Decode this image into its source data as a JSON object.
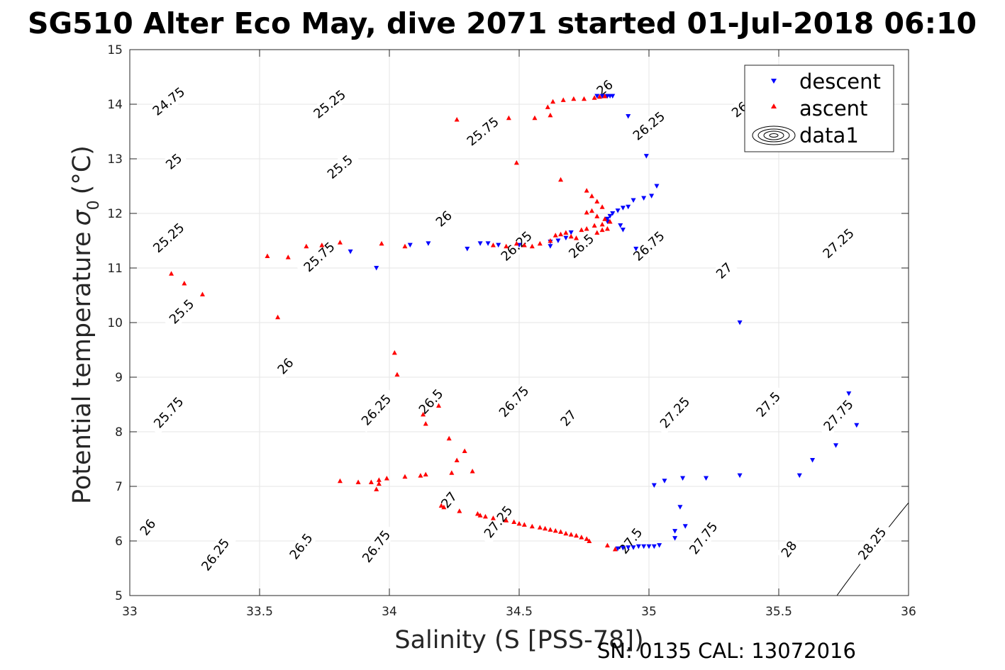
{
  "chart_data": {
    "type": "scatter",
    "title": "SG510 Alter Eco May, dive 2071 started 01-Jul-2018 06:10",
    "xlabel": "Salinity (S [PSS-78])",
    "ylabel": "Potential temperature",
    "ylabel_symbol": "σ",
    "ylabel_subscript": "0",
    "ylabel_unit": "(°C)",
    "xlim": [
      33,
      36
    ],
    "ylim": [
      5,
      15
    ],
    "xticks": [
      "33",
      "33.5",
      "34",
      "34.5",
      "35",
      "35.5",
      "36"
    ],
    "yticks": [
      "5",
      "6",
      "7",
      "8",
      "9",
      "10",
      "11",
      "12",
      "13",
      "14",
      "15"
    ],
    "grid": true,
    "legend_position": "top-right",
    "contours": {
      "levels": [
        24.75,
        25,
        25.25,
        25.5,
        25.75,
        26,
        26.25,
        26.5,
        26.75,
        27,
        27.25,
        27.5,
        27.75,
        28,
        28.25
      ],
      "labels": [
        {
          "text": "24.75",
          "s": 33.15,
          "t": 14.05
        },
        {
          "text": "25",
          "s": 33.17,
          "t": 12.95
        },
        {
          "text": "25.25",
          "s": 33.15,
          "t": 11.55
        },
        {
          "text": "25.5",
          "s": 33.2,
          "t": 10.2
        },
        {
          "text": "25.75",
          "s": 33.15,
          "t": 8.35
        },
        {
          "text": "26",
          "s": 33.07,
          "t": 6.25
        },
        {
          "text": "25.25",
          "s": 33.77,
          "t": 14.0
        },
        {
          "text": "25.5",
          "s": 33.81,
          "t": 12.85
        },
        {
          "text": "25.75",
          "s": 33.73,
          "t": 11.2
        },
        {
          "text": "26",
          "s": 33.6,
          "t": 9.2
        },
        {
          "text": "26.25",
          "s": 33.33,
          "t": 5.75
        },
        {
          "text": "25.75",
          "s": 34.36,
          "t": 13.5
        },
        {
          "text": "26",
          "s": 34.21,
          "t": 11.9
        },
        {
          "text": "26.25",
          "s": 33.95,
          "t": 8.4
        },
        {
          "text": "26.5",
          "s": 33.66,
          "t": 5.9
        },
        {
          "text": "26.25",
          "s": 34.49,
          "t": 11.4
        },
        {
          "text": "26.5",
          "s": 34.16,
          "t": 8.55
        },
        {
          "text": "26.75",
          "s": 33.95,
          "t": 5.9
        },
        {
          "text": "26",
          "s": 34.83,
          "t": 14.3
        },
        {
          "text": "26.5",
          "s": 34.74,
          "t": 11.4
        },
        {
          "text": "26.75",
          "s": 34.48,
          "t": 8.55
        },
        {
          "text": "27",
          "s": 34.23,
          "t": 6.75
        },
        {
          "text": "26.25",
          "s": 35.0,
          "t": 13.6
        },
        {
          "text": "26.75",
          "s": 35.0,
          "t": 11.4
        },
        {
          "text": "27",
          "s": 34.69,
          "t": 8.25
        },
        {
          "text": "27.25",
          "s": 34.42,
          "t": 6.35
        },
        {
          "text": "26",
          "s": 35.35,
          "t": 13.9
        },
        {
          "text": "27",
          "s": 35.29,
          "t": 10.95
        },
        {
          "text": "27.25",
          "s": 35.1,
          "t": 8.35
        },
        {
          "text": "27.5",
          "s": 34.93,
          "t": 6.0
        },
        {
          "text": "27.25",
          "s": 35.73,
          "t": 11.45
        },
        {
          "text": "27.5",
          "s": 35.46,
          "t": 8.5
        },
        {
          "text": "27.75",
          "s": 35.21,
          "t": 6.05
        },
        {
          "text": "27.75",
          "s": 35.73,
          "t": 8.3
        },
        {
          "text": "28",
          "s": 35.54,
          "t": 5.85
        },
        {
          "text": "28.25",
          "s": 35.86,
          "t": 5.95
        }
      ]
    },
    "series": [
      {
        "name": "descent",
        "marker": "triangle-down",
        "color": "#0000FF",
        "points": [
          [
            34.8,
            14.15
          ],
          [
            34.82,
            14.15
          ],
          [
            34.84,
            14.15
          ],
          [
            34.85,
            14.15
          ],
          [
            34.86,
            14.15
          ],
          [
            34.92,
            13.78
          ],
          [
            34.99,
            13.05
          ],
          [
            35.03,
            12.5
          ],
          [
            35.01,
            12.32
          ],
          [
            34.98,
            12.28
          ],
          [
            34.94,
            12.24
          ],
          [
            34.92,
            12.12
          ],
          [
            34.9,
            12.1
          ],
          [
            34.88,
            12.05
          ],
          [
            34.86,
            12.0
          ],
          [
            34.85,
            11.95
          ],
          [
            34.84,
            11.9
          ],
          [
            34.84,
            11.85
          ],
          [
            34.89,
            11.78
          ],
          [
            34.9,
            11.7
          ],
          [
            34.95,
            11.35
          ],
          [
            34.7,
            11.65
          ],
          [
            34.68,
            11.55
          ],
          [
            34.65,
            11.5
          ],
          [
            34.62,
            11.48
          ],
          [
            34.62,
            11.4
          ],
          [
            34.5,
            11.42
          ],
          [
            34.42,
            11.42
          ],
          [
            34.38,
            11.45
          ],
          [
            34.35,
            11.45
          ],
          [
            34.3,
            11.35
          ],
          [
            34.15,
            11.45
          ],
          [
            34.08,
            11.42
          ],
          [
            33.95,
            11.0
          ],
          [
            33.85,
            11.3
          ],
          [
            35.35,
            10.0
          ],
          [
            35.8,
            8.12
          ],
          [
            35.77,
            8.7
          ],
          [
            35.72,
            7.75
          ],
          [
            35.63,
            7.48
          ],
          [
            35.58,
            7.2
          ],
          [
            35.35,
            7.2
          ],
          [
            35.22,
            7.15
          ],
          [
            35.13,
            7.15
          ],
          [
            35.06,
            7.1
          ],
          [
            35.02,
            7.02
          ],
          [
            35.12,
            6.62
          ],
          [
            35.14,
            6.27
          ],
          [
            35.1,
            6.18
          ],
          [
            35.1,
            6.05
          ],
          [
            35.04,
            5.92
          ],
          [
            35.02,
            5.9
          ],
          [
            35.0,
            5.9
          ],
          [
            34.98,
            5.9
          ],
          [
            34.96,
            5.9
          ],
          [
            34.94,
            5.88
          ],
          [
            34.92,
            5.88
          ],
          [
            34.9,
            5.87
          ],
          [
            34.88,
            5.86
          ]
        ]
      },
      {
        "name": "ascent",
        "marker": "triangle-up",
        "color": "#FF0000",
        "points": [
          [
            34.83,
            14.15
          ],
          [
            34.81,
            14.14
          ],
          [
            34.79,
            14.12
          ],
          [
            34.75,
            14.1
          ],
          [
            34.71,
            14.1
          ],
          [
            34.67,
            14.08
          ],
          [
            34.63,
            14.05
          ],
          [
            34.61,
            13.95
          ],
          [
            34.62,
            13.8
          ],
          [
            34.56,
            13.75
          ],
          [
            34.46,
            13.75
          ],
          [
            34.26,
            13.72
          ],
          [
            34.49,
            12.93
          ],
          [
            34.66,
            12.62
          ],
          [
            34.76,
            12.42
          ],
          [
            34.78,
            12.32
          ],
          [
            34.8,
            12.22
          ],
          [
            34.82,
            12.12
          ],
          [
            34.78,
            12.05
          ],
          [
            34.76,
            12.02
          ],
          [
            34.8,
            11.95
          ],
          [
            34.83,
            11.9
          ],
          [
            34.85,
            11.85
          ],
          [
            34.82,
            11.8
          ],
          [
            34.79,
            11.78
          ],
          [
            34.76,
            11.72
          ],
          [
            34.74,
            11.7
          ],
          [
            34.8,
            11.65
          ],
          [
            34.82,
            11.7
          ],
          [
            34.84,
            11.72
          ],
          [
            34.68,
            11.65
          ],
          [
            34.66,
            11.62
          ],
          [
            34.64,
            11.6
          ],
          [
            34.7,
            11.58
          ],
          [
            34.72,
            11.55
          ],
          [
            34.62,
            11.5
          ],
          [
            34.58,
            11.45
          ],
          [
            34.55,
            11.4
          ],
          [
            34.52,
            11.42
          ],
          [
            34.49,
            11.45
          ],
          [
            34.45,
            11.4
          ],
          [
            34.4,
            11.42
          ],
          [
            34.06,
            11.4
          ],
          [
            33.97,
            11.45
          ],
          [
            33.81,
            11.47
          ],
          [
            33.74,
            11.42
          ],
          [
            33.68,
            11.4
          ],
          [
            33.61,
            11.2
          ],
          [
            33.53,
            11.22
          ],
          [
            33.16,
            10.9
          ],
          [
            33.21,
            10.72
          ],
          [
            33.28,
            10.52
          ],
          [
            33.57,
            10.1
          ],
          [
            34.02,
            9.45
          ],
          [
            34.03,
            9.05
          ],
          [
            34.19,
            8.48
          ],
          [
            34.13,
            8.32
          ],
          [
            34.14,
            8.15
          ],
          [
            34.23,
            7.88
          ],
          [
            34.29,
            7.65
          ],
          [
            34.26,
            7.48
          ],
          [
            34.32,
            7.28
          ],
          [
            34.24,
            7.25
          ],
          [
            34.14,
            7.22
          ],
          [
            34.12,
            7.2
          ],
          [
            34.06,
            7.18
          ],
          [
            33.99,
            7.15
          ],
          [
            33.96,
            7.12
          ],
          [
            33.93,
            7.08
          ],
          [
            33.88,
            7.08
          ],
          [
            33.81,
            7.1
          ],
          [
            33.96,
            7.05
          ],
          [
            33.95,
            6.95
          ],
          [
            34.2,
            6.65
          ],
          [
            34.21,
            6.62
          ],
          [
            34.27,
            6.55
          ],
          [
            34.34,
            6.5
          ],
          [
            34.35,
            6.47
          ],
          [
            34.37,
            6.45
          ],
          [
            34.4,
            6.42
          ],
          [
            34.45,
            6.38
          ],
          [
            34.48,
            6.35
          ],
          [
            34.5,
            6.32
          ],
          [
            34.52,
            6.3
          ],
          [
            34.55,
            6.27
          ],
          [
            34.58,
            6.25
          ],
          [
            34.6,
            6.23
          ],
          [
            34.62,
            6.21
          ],
          [
            34.64,
            6.19
          ],
          [
            34.66,
            6.17
          ],
          [
            34.68,
            6.14
          ],
          [
            34.7,
            6.12
          ],
          [
            34.72,
            6.1
          ],
          [
            34.74,
            6.07
          ],
          [
            34.76,
            6.04
          ],
          [
            34.77,
            6.0
          ],
          [
            34.84,
            5.92
          ],
          [
            34.87,
            5.85
          ]
        ]
      }
    ],
    "legend": [
      {
        "label": "descent",
        "marker": "triangle-down",
        "color": "#0000FF"
      },
      {
        "label": "ascent",
        "marker": "triangle-up",
        "color": "#FF0000"
      },
      {
        "label": "data1",
        "marker": "contour-ellipses",
        "color": "#000000"
      }
    ]
  },
  "footer": {
    "text": "SN: 0135  CAL: 13072016"
  }
}
